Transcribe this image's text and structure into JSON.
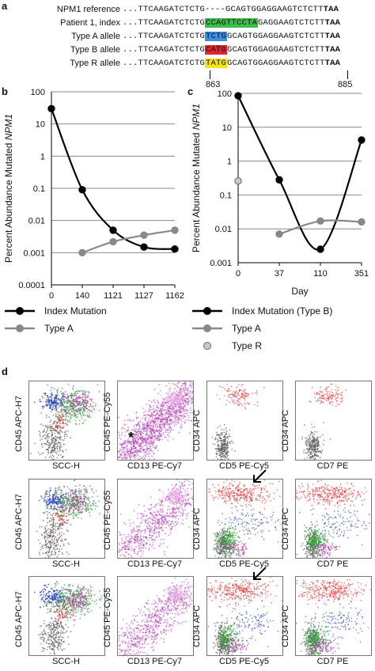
{
  "panel_a": {
    "letter": "a",
    "rows": [
      {
        "label": "NPM1 reference",
        "prefix": "...",
        "seq_pre": "TTCAAGATCTCTG",
        "seq_hl": "----",
        "seq_post": "GCAGTGGAGGAAGTCTCTT",
        "stop": "TAA",
        "color": ""
      },
      {
        "label": "Patient 1, index",
        "prefix": "...",
        "seq_pre": "TTCAAGATCTCTG",
        "seq_hl": "CCAGTTCCTA",
        "seq_post": "GAGGAAGTCTCTT",
        "stop": "TAA",
        "color": "#3dbd4a"
      },
      {
        "label": "Type A allele",
        "prefix": "...",
        "seq_pre": "TTCAAGATCTCTG",
        "seq_hl": "TCTG",
        "seq_post": "GCAGTGGAGGAAGTCTCTT",
        "stop": "TAA",
        "color": "#3b8fe0"
      },
      {
        "label": "Type B allele",
        "prefix": "...",
        "seq_pre": "TTCAAGATCTCTG",
        "seq_hl": "CATG",
        "seq_post": "GCAGTGGAGGAAGTCTCTT",
        "stop": "TAA",
        "color": "#e0262b"
      },
      {
        "label": "Type R allele",
        "prefix": "...",
        "seq_pre": "TTCAAGATCTCTG",
        "seq_hl": "TATG",
        "seq_post": "GCAGTGGAGGAAGTCTCTT",
        "stop": "TAA",
        "color": "#f5e31a"
      }
    ],
    "pos_start": "863",
    "pos_end": "885"
  },
  "panel_b": {
    "letter": "b"
  },
  "panel_c": {
    "letter": "c"
  },
  "panel_d": {
    "letter": "d"
  },
  "shared": {
    "ylabel_prefix": "Percent Abundance Mutated ",
    "ylabel_gene": "NPM1"
  },
  "chart_data": [
    {
      "type": "line",
      "xlabel": "Day",
      "ylabel": "Percent Abundance Mutated NPM1",
      "yscale": "log",
      "ylim": [
        0.0001,
        100
      ],
      "yticks": [
        "100",
        "10",
        "1",
        "0.1",
        "0.01",
        "0.001",
        "0.0001"
      ],
      "categories": [
        "0",
        "140",
        "1121",
        "1127",
        "1162"
      ],
      "grid": true,
      "legend_position": "bottom",
      "series": [
        {
          "name": "Index Mutation",
          "color": "#000000",
          "x": [
            0,
            1,
            2,
            3,
            4
          ],
          "values": [
            30,
            0.09,
            0.005,
            0.0015,
            0.0013
          ]
        },
        {
          "name": "Type A",
          "color": "#888888",
          "x": [
            1,
            2,
            3,
            4
          ],
          "values": [
            0.001,
            0.0022,
            0.0035,
            0.005
          ]
        }
      ]
    },
    {
      "type": "line",
      "xlabel": "Day",
      "ylabel": "Percent Abundance Mutated NPM1",
      "yscale": "log",
      "ylim": [
        0.001,
        100
      ],
      "yticks": [
        "100",
        "10",
        "1",
        "0.1",
        "0.01",
        "0.001"
      ],
      "categories": [
        "0",
        "37",
        "110",
        "351"
      ],
      "grid": true,
      "legend_position": "bottom",
      "series": [
        {
          "name": "Index Mutation (Type B)",
          "color": "#000000",
          "x": [
            0,
            1,
            2,
            3
          ],
          "values": [
            85,
            0.28,
            0.0025,
            4.2
          ]
        },
        {
          "name": "Type A",
          "color": "#888888",
          "x": [
            1,
            2,
            3
          ],
          "values": [
            0.007,
            0.017,
            0.016
          ]
        },
        {
          "name": "Type R",
          "color": "#c8c8c8",
          "marker_only": true,
          "x": [
            0
          ],
          "values": [
            0.26
          ]
        }
      ]
    }
  ],
  "flow": {
    "rows": [
      {
        "cols": [
          {
            "x": "SCC-H",
            "y": "CD45 APC-H7"
          },
          {
            "x": "CD13 PE-Cy7",
            "y": "CD45 PE-Cy55",
            "mark": "*"
          },
          {
            "x": "CD5 PE-Cy5",
            "y": "CD34 APC"
          },
          {
            "x": "CD7 PE",
            "y": "CD34 APC"
          }
        ]
      },
      {
        "cols": [
          {
            "x": "SCC-H",
            "y": "CD45 APC-H7"
          },
          {
            "x": "CD13 PE-Cy7",
            "y": "CD45 PE-Cy55"
          },
          {
            "x": "CD5 PE-Cy5",
            "y": "CD34 APC",
            "arrow": true
          },
          {
            "x": "CD7 PE",
            "y": "CD34 APC"
          }
        ]
      },
      {
        "cols": [
          {
            "x": "SCC-H",
            "y": "CD45 APC-H7"
          },
          {
            "x": "CD13 PE-Cy7",
            "y": "CD45 PE-Cy55"
          },
          {
            "x": "CD5 PE-Cy5",
            "y": "CD34 APC",
            "arrow": true
          },
          {
            "x": "CD7 PE",
            "y": "CD34 APC"
          }
        ]
      }
    ]
  }
}
